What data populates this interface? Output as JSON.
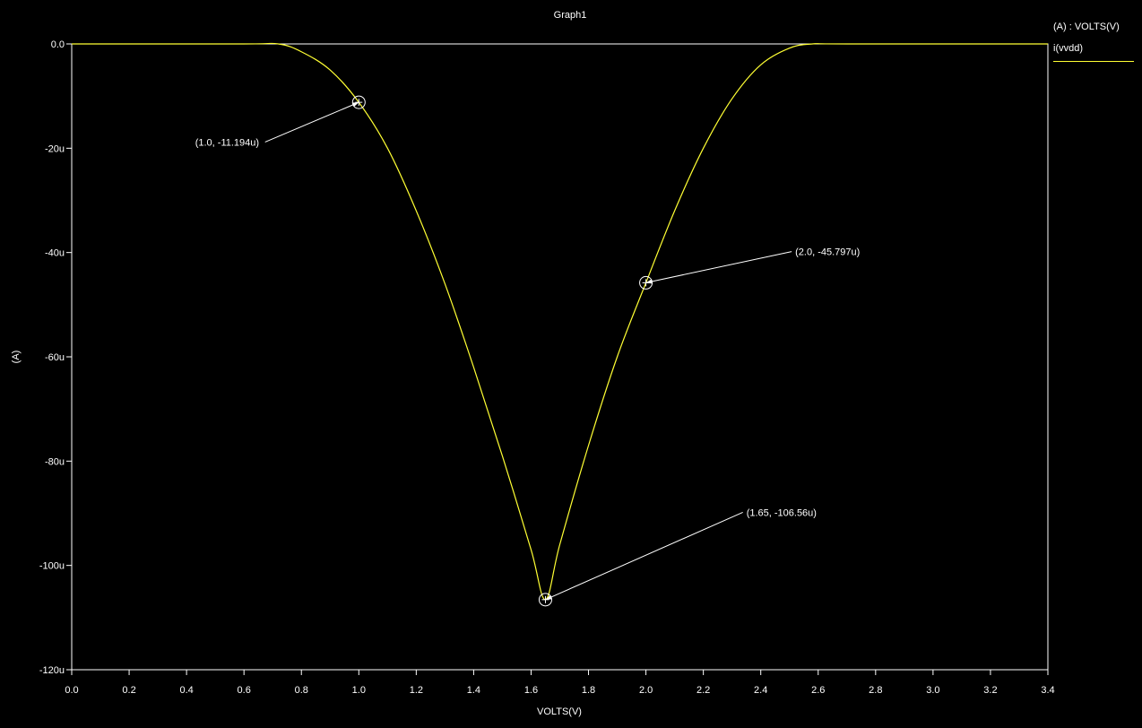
{
  "chart_data": {
    "type": "line",
    "title": "Graph1",
    "xlabel": "VOLTS(V)",
    "ylabel": "(A)",
    "xlim": [
      0.0,
      3.4
    ],
    "ylim": [
      -120,
      0
    ],
    "x_ticks": [
      "0.0",
      "0.2",
      "0.4",
      "0.6",
      "0.8",
      "1.0",
      "1.2",
      "1.4",
      "1.6",
      "1.8",
      "2.0",
      "2.2",
      "2.4",
      "2.6",
      "2.8",
      "3.0",
      "3.2",
      "3.4"
    ],
    "y_ticks": [
      "0.0",
      "-20u",
      "-40u",
      "-60u",
      "-80u",
      "-100u",
      "-120u"
    ],
    "legend": {
      "header": "(A) : VOLTS(V)",
      "placement": "right",
      "entries": [
        {
          "name": "i(vvdd)",
          "color": "#ffff33"
        }
      ]
    },
    "series": [
      {
        "name": "i(vvdd)",
        "color": "#ffff33",
        "x": [
          0.0,
          0.6,
          0.72,
          0.8,
          0.9,
          1.0,
          1.1,
          1.2,
          1.3,
          1.4,
          1.5,
          1.6,
          1.65,
          1.7,
          1.8,
          1.9,
          2.0,
          2.1,
          2.2,
          2.3,
          2.4,
          2.5,
          2.58,
          2.7,
          3.4
        ],
        "y": [
          0.0,
          0.0,
          0.0,
          -1.5,
          -5.0,
          -11.194,
          -20.0,
          -32.0,
          -46.0,
          -62.0,
          -79.0,
          -97.0,
          -106.56,
          -96.0,
          -77.0,
          -60.0,
          -45.797,
          -32.0,
          -20.0,
          -10.5,
          -4.0,
          -0.8,
          0.0,
          0.0,
          0.0
        ]
      }
    ],
    "annotations": [
      {
        "x": 1.0,
        "y": -11.194,
        "label": "(1.0, -11.194u)",
        "label_x": 0.43,
        "label_y": -19.5
      },
      {
        "x": 2.0,
        "y": -45.797,
        "label": "(2.0, -45.797u)",
        "label_x": 2.52,
        "label_y": -40.5
      },
      {
        "x": 1.65,
        "y": -106.56,
        "label": "(1.65, -106.56u)",
        "label_x": 2.35,
        "label_y": -90.5
      }
    ]
  }
}
